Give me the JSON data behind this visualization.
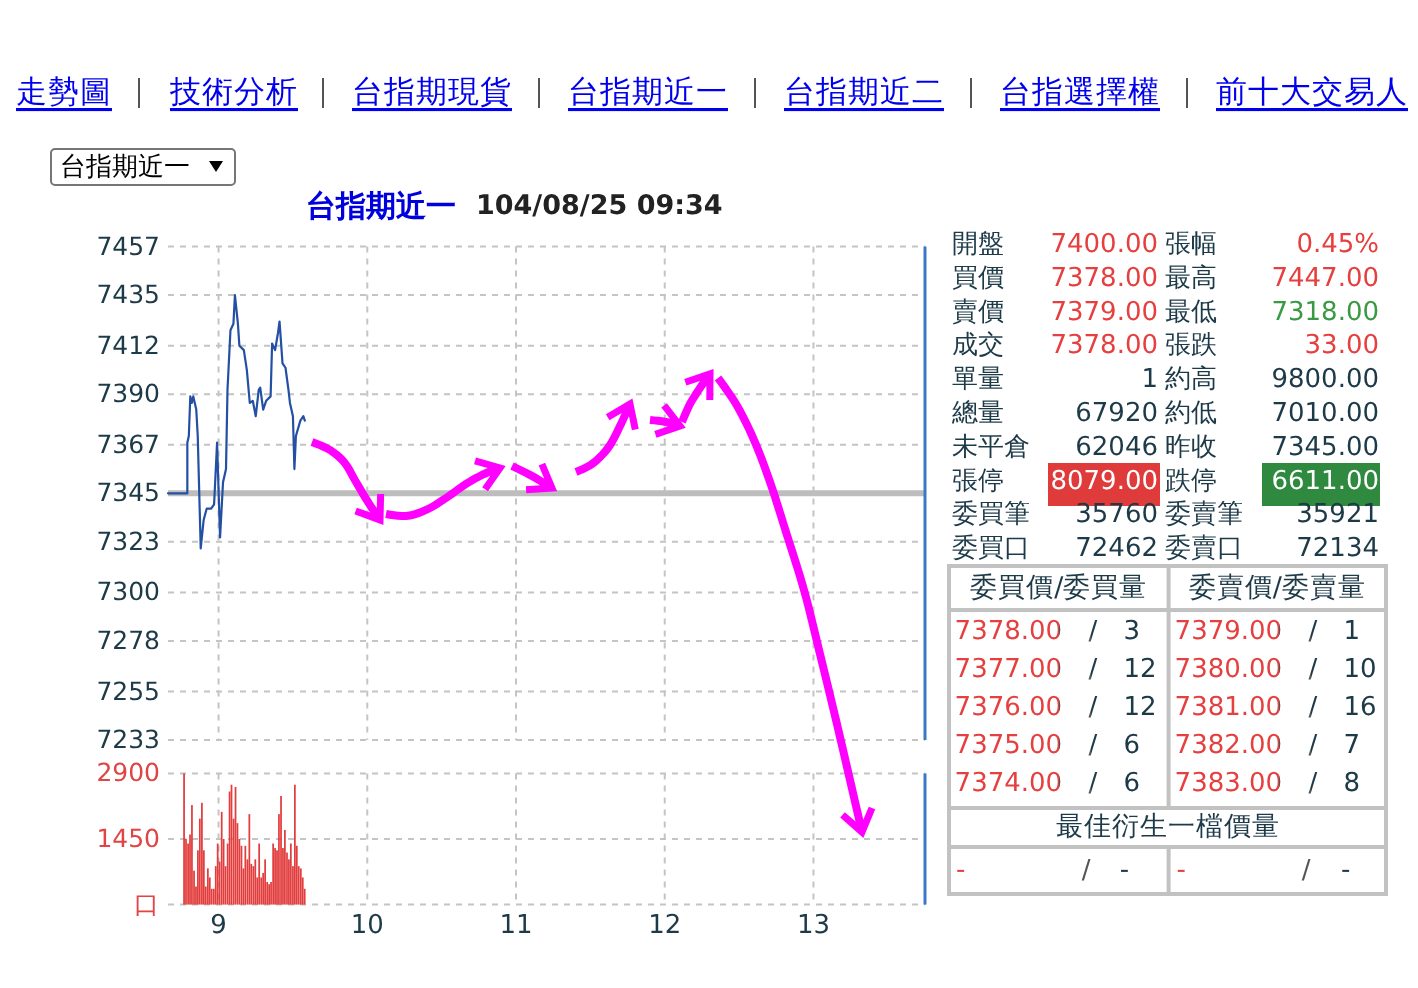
{
  "chart_data": [
    {
      "type": "line",
      "title": "台指期近一",
      "subtitle": "104/08/25 09:34",
      "annotations": [
        "走勢圖",
        "技術分析",
        "台指期現貨",
        "台指期近一",
        "台指期近二",
        "台指選擇權",
        "前十大交易人",
        "台指期近一"
      ],
      "x": [
        8.66,
        8.79,
        8.79,
        8.8,
        8.81,
        8.82,
        8.83,
        8.85,
        8.86,
        8.88,
        8.9,
        8.92,
        8.95,
        8.97,
        8.99,
        9.01,
        9.03,
        9.05,
        9.06,
        9.08,
        9.1,
        9.11,
        9.13,
        9.14,
        9.17,
        9.19,
        9.21,
        9.23,
        9.25,
        9.27,
        9.28,
        9.3,
        9.32,
        9.35,
        9.36,
        9.38,
        9.4,
        9.41,
        9.43,
        9.45,
        9.47,
        9.48,
        9.5,
        9.51,
        9.52,
        9.55,
        9.57,
        9.58
      ],
      "values": [
        7345,
        7345,
        7368,
        7371,
        7389,
        7386,
        7389,
        7383,
        7371,
        7320,
        7333,
        7338,
        7338,
        7340,
        7368,
        7325,
        7350,
        7356,
        7392,
        7419,
        7422,
        7435,
        7422,
        7412,
        7410,
        7401,
        7386,
        7387,
        7380,
        7392,
        7393,
        7383,
        7387,
        7389,
        7413,
        7410,
        7418,
        7423,
        7404,
        7402,
        7392,
        7386,
        7380,
        7356,
        7371,
        7378,
        7380,
        7378
      ],
      "color": "#2350a3",
      "xlim": [
        8.66,
        13.75
      ],
      "xticks": [
        9,
        10,
        11,
        12,
        13
      ],
      "ylim": [
        7233,
        7457
      ],
      "yticks": [
        7233,
        7255,
        7278,
        7300,
        7323,
        7345,
        7367,
        7390,
        7412,
        7435,
        7457
      ],
      "grid": true,
      "tick_labels": "y",
      "ref_lines": [
        {
          "axis": "y",
          "value": 7345,
          "color": "#bdbdbd"
        }
      ]
    },
    {
      "type": "bar",
      "x": [
        8.768,
        8.781,
        8.795,
        8.808,
        8.821,
        8.835,
        8.848,
        8.861,
        8.874,
        8.888,
        8.901,
        8.914,
        8.928,
        8.941,
        8.954,
        8.968,
        8.981,
        8.994,
        9.007,
        9.021,
        9.034,
        9.047,
        9.061,
        9.074,
        9.087,
        9.101,
        9.114,
        9.127,
        9.14,
        9.154,
        9.167,
        9.18,
        9.194,
        9.207,
        9.22,
        9.234,
        9.247,
        9.26,
        9.273,
        9.287,
        9.3,
        9.313,
        9.327,
        9.34,
        9.353,
        9.367,
        9.38,
        9.393,
        9.406,
        9.42,
        9.433,
        9.446,
        9.46,
        9.473,
        9.486,
        9.5,
        9.513,
        9.526,
        9.539,
        9.553,
        9.566,
        9.579
      ],
      "values": [
        2900,
        1450,
        1350,
        1550,
        2200,
        750,
        400,
        1200,
        1900,
        2250,
        1200,
        400,
        800,
        600,
        350,
        350,
        850,
        1350,
        950,
        2050,
        1450,
        850,
        1350,
        2500,
        2650,
        1900,
        2600,
        1800,
        1450,
        1300,
        800,
        1300,
        1000,
        2000,
        900,
        850,
        1000,
        600,
        1350,
        600,
        700,
        1000,
        500,
        450,
        500,
        1350,
        1250,
        1200,
        2000,
        2400,
        1250,
        1650,
        1150,
        1000,
        1350,
        850,
        2650,
        1300,
        850,
        800,
        600,
        350
      ],
      "color": "#e23c3c",
      "xlim": [
        8.66,
        13.75
      ],
      "xticks": [
        9,
        10,
        11,
        12,
        13
      ],
      "ylim": [
        0,
        2900
      ],
      "yticks": [
        {
          "value": 0,
          "label": "口"
        },
        1450,
        2900
      ],
      "grid": true
    },
    {
      "type": "other",
      "annotations": [
        "開盤",
        "7400.00",
        "張幅",
        "0.45%",
        "買價",
        "7378.00",
        "最高",
        "7447.00",
        "賣價",
        "7379.00",
        "最低",
        "7318.00",
        "成交",
        "7378.00",
        "張跌",
        "33.00",
        "單量",
        "1",
        "約高",
        "9800.00",
        "總量",
        "67920",
        "約低",
        "7010.00",
        "未平倉",
        "62046",
        "昨收",
        "7345.00",
        "張停",
        "8079.00",
        "跌停",
        "6611.00",
        "委買筆",
        "35760",
        "委賣筆",
        "35921",
        "委買口",
        "72462",
        "委賣口",
        "72134",
        "委買價/委買量",
        "委賣價/委賣量",
        "7378.00 / 3",
        "7379.00 / 1",
        "7377.00 / 12",
        "7380.00 / 10",
        "7376.00 / 12",
        "7381.00 / 16",
        "7375.00 / 6",
        "7382.00 / 7",
        "7374.00 / 6",
        "7383.00 / 8",
        "最佳衍生一檔價量",
        "- / -",
        "- / -"
      ]
    }
  ]
}
